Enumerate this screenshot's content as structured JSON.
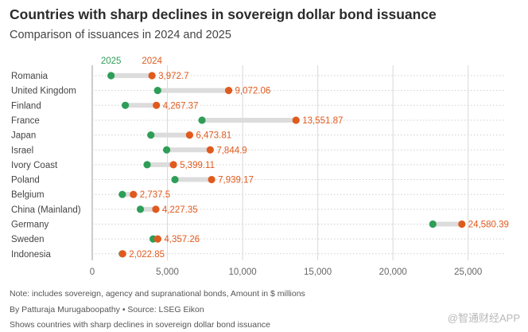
{
  "chart_data": {
    "type": "dumbbell",
    "title": "Countries with sharp declines in sovereign dollar bond issuance",
    "subtitle": "Comparison of issuances in 2024 and 2025",
    "series": [
      {
        "name": "2025",
        "color": "#2e9e57"
      },
      {
        "name": "2024",
        "color": "#e05a1e"
      }
    ],
    "categories": [
      "Romania",
      "United Kingdom",
      "Finland",
      "France",
      "Japan",
      "Israel",
      "Ivory Coast",
      "Poland",
      "Belgium",
      "China (Mainland)",
      "Germany",
      "Sweden",
      "Indonesia"
    ],
    "values_2024": [
      3972.7,
      9072.06,
      4267.37,
      13551.87,
      6473.81,
      7844.9,
      5399.11,
      7939.17,
      2737.5,
      4227.35,
      24580.39,
      4357.26,
      2022.85
    ],
    "labels_2024": [
      "3,972.7",
      "9,072.06",
      "4,267.37",
      "13,551.87",
      "6,473.81",
      "7,844.9",
      "5,399.11",
      "7,939.17",
      "2,737.5",
      "4,227.35",
      "24,580.39",
      "4,357.26",
      "2,022.85"
    ],
    "values_2025": [
      1250,
      4350,
      2200,
      7300,
      3900,
      4950,
      3650,
      5500,
      2000,
      3200,
      22650,
      4050,
      2000
    ],
    "xlim": [
      0,
      27500
    ],
    "xticks": [
      0,
      5000,
      10000,
      15000,
      20000,
      25000
    ],
    "xtick_labels": [
      "0",
      "5,000",
      "10,000",
      "15,000",
      "20,000",
      "25,000"
    ],
    "grid": true
  },
  "notes": {
    "note": "Note: includes sovereign, agency and supranational bonds, Amount in $ millions",
    "byline": "By Patturaja Murugaboopathy • Source: LSEG Eikon",
    "caption": "Shows countries with sharp declines in sovereign dollar bond issuance"
  },
  "watermark": "@智通财经APP"
}
